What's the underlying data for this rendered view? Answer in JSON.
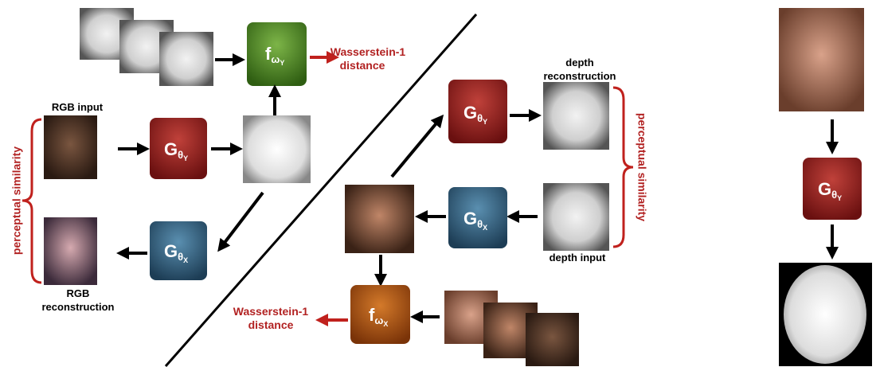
{
  "labels": {
    "rgb_input": "RGB input",
    "rgb_reconstruction": [
      "RGB",
      "reconstruction"
    ],
    "perceptual_left": "perceptual similarity",
    "perceptual_right": "perceptual similarity",
    "wasserstein_top": [
      "Wasserstein-1",
      "distance"
    ],
    "wasserstein_bottom": [
      "Wasserstein-1",
      "distance"
    ],
    "depth_reconstruction": [
      "depth",
      "reconstruction"
    ],
    "depth_input": "depth input"
  },
  "boxes": [
    {
      "letter": "f",
      "sub": "ω",
      "subsub": "Y"
    },
    {
      "letter": "G",
      "sub": "θ",
      "subsub": "Y"
    },
    {
      "letter": "G",
      "sub": "θ",
      "subsub": "X"
    },
    {
      "letter": "G",
      "sub": "θ",
      "subsub": "Y"
    },
    {
      "letter": "G",
      "sub": "θ",
      "subsub": "X"
    },
    {
      "letter": "f",
      "sub": "ω",
      "subsub": "X"
    },
    {
      "letter": "G",
      "sub": "θ",
      "subsub": "Y"
    }
  ]
}
